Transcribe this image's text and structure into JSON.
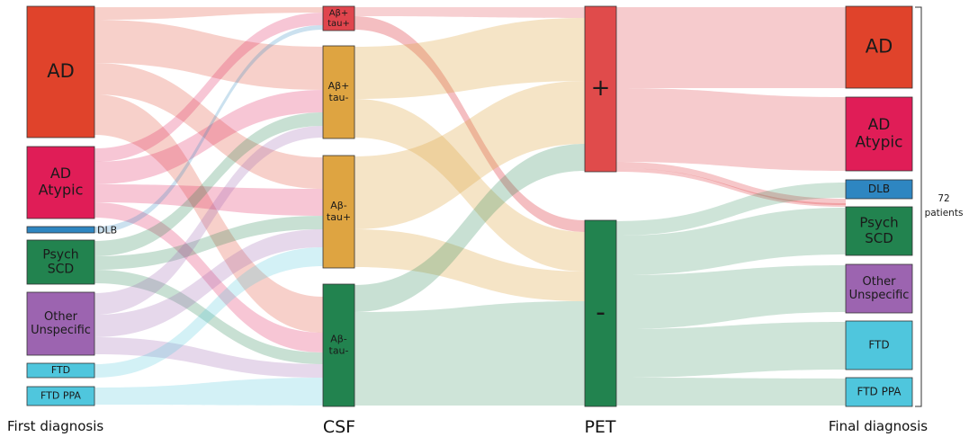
{
  "columns": {
    "first": "First diagnosis",
    "csf": "CSF",
    "pet": "PET",
    "final": "Final diagnosis"
  },
  "bracket_label": {
    "line1": "72",
    "line2": "patients"
  },
  "colors": {
    "ad": "#e0432b",
    "atypic": "#e01d57",
    "dlb": "#2e86c1",
    "psych": "#22834f",
    "other": "#9c64b0",
    "ftd": "#4fc6dd",
    "csf_orange": "#dea441",
    "csf_red": "#e0454d",
    "csf_green": "#22834f",
    "pet_plus": "#e04b4b",
    "pet_minus": "#22834f"
  },
  "nodes": {
    "first": [
      {
        "id": "f_ad",
        "lines": [
          "AD"
        ],
        "color": "ad"
      },
      {
        "id": "f_atypic",
        "lines": [
          "AD",
          "Atypic"
        ],
        "color": "atypic"
      },
      {
        "id": "f_dlb",
        "lines": [
          "DLB"
        ],
        "color": "dlb"
      },
      {
        "id": "f_psych",
        "lines": [
          "Psych",
          "SCD"
        ],
        "color": "psych"
      },
      {
        "id": "f_other",
        "lines": [
          "Other",
          "Unspecific"
        ],
        "color": "other"
      },
      {
        "id": "f_ftd",
        "lines": [
          "FTD"
        ],
        "color": "ftd"
      },
      {
        "id": "f_ftdppa",
        "lines": [
          "FTD PPA"
        ],
        "color": "ftd"
      }
    ],
    "csf": [
      {
        "id": "c_ab_tau_pp",
        "lines": [
          "Aβ+",
          "tau+"
        ],
        "color": "csf_red"
      },
      {
        "id": "c_ab_tau_pm",
        "lines": [
          "Aβ+",
          "tau-"
        ],
        "color": "csf_orange"
      },
      {
        "id": "c_ab_tau_mp",
        "lines": [
          "Aβ-",
          "tau+"
        ],
        "color": "csf_orange"
      },
      {
        "id": "c_ab_tau_mm",
        "lines": [
          "Aβ-",
          "tau-"
        ],
        "color": "csf_green"
      }
    ],
    "pet": [
      {
        "id": "p_plus",
        "lines": [
          "+"
        ],
        "color": "pet_plus"
      },
      {
        "id": "p_minus",
        "lines": [
          "-"
        ],
        "color": "pet_minus"
      }
    ],
    "final": [
      {
        "id": "z_ad",
        "lines": [
          "AD"
        ],
        "color": "ad"
      },
      {
        "id": "z_atypic",
        "lines": [
          "AD",
          "Atypic"
        ],
        "color": "atypic"
      },
      {
        "id": "z_dlb",
        "lines": [
          "DLB"
        ],
        "color": "dlb"
      },
      {
        "id": "z_psych",
        "lines": [
          "Psych",
          "SCD"
        ],
        "color": "psych"
      },
      {
        "id": "z_other",
        "lines": [
          "Other",
          "Unspecific"
        ],
        "color": "other"
      },
      {
        "id": "z_ftd",
        "lines": [
          "FTD"
        ],
        "color": "ftd"
      },
      {
        "id": "z_ftdppa",
        "lines": [
          "FTD PPA"
        ],
        "color": "ftd"
      }
    ]
  }
}
